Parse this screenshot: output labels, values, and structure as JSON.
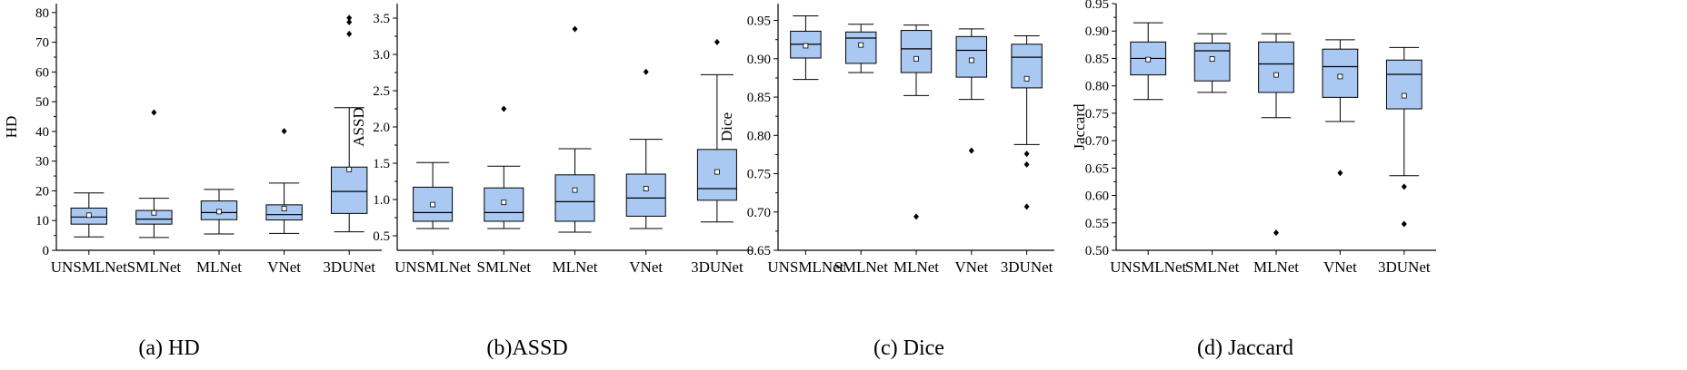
{
  "colors": {
    "box_fill": "#a9c8f2",
    "axis": "#000000",
    "mean_marker": "#ffffff"
  },
  "chart_data": [
    {
      "type": "box",
      "caption": "(a) HD",
      "ylabel": "HD",
      "xlabel": "",
      "ylim": [
        0,
        83
      ],
      "yticks": [
        0,
        10,
        20,
        30,
        40,
        50,
        60,
        70,
        80
      ],
      "tick_labels": [
        "0",
        "10",
        "20",
        "30",
        "40",
        "50",
        "60",
        "70",
        "80"
      ],
      "categories": [
        "UNSMLNet",
        "SMLNet",
        "MLNet",
        "VNet",
        "3DUNet"
      ],
      "boxes": [
        {
          "whisker_low": 4.5,
          "q1": 8.8,
          "median": 11.2,
          "q3": 14.2,
          "whisker_high": 19.3,
          "mean": 11.8,
          "outliers": []
        },
        {
          "whisker_low": 4.3,
          "q1": 8.8,
          "median": 10.5,
          "q3": 13.4,
          "whisker_high": 17.5,
          "mean": 12.6,
          "outliers": [
            46.4
          ]
        },
        {
          "whisker_low": 5.5,
          "q1": 10.3,
          "median": 12.7,
          "q3": 16.6,
          "whisker_high": 20.5,
          "mean": 13.0,
          "outliers": []
        },
        {
          "whisker_low": 5.7,
          "q1": 10.2,
          "median": 12.0,
          "q3": 15.3,
          "whisker_high": 22.6,
          "mean": 14.0,
          "outliers": [
            40.1
          ]
        },
        {
          "whisker_low": 6.2,
          "q1": 12.4,
          "median": 19.8,
          "q3": 28.0,
          "whisker_high": 48.0,
          "mean": 27.2,
          "outliers": [
            72.8,
            76.8,
            78.2
          ]
        }
      ]
    },
    {
      "type": "box",
      "caption": "(b)ASSD",
      "ylabel": "ASSD",
      "xlabel": "",
      "ylim": [
        0.3,
        3.7
      ],
      "yticks": [
        0.5,
        1.0,
        1.5,
        2.0,
        2.5,
        3.0,
        3.5
      ],
      "tick_labels": [
        "0.5",
        "1.0",
        "1.5",
        "2.0",
        "2.5",
        "3.0",
        "3.5"
      ],
      "categories": [
        "UNSMLNet",
        "SMLNet",
        "MLNet",
        "VNet",
        "3DUNet"
      ],
      "boxes": [
        {
          "whisker_low": 0.6,
          "q1": 0.7,
          "median": 0.82,
          "q3": 1.17,
          "whisker_high": 1.51,
          "mean": 0.93,
          "outliers": []
        },
        {
          "whisker_low": 0.6,
          "q1": 0.7,
          "median": 0.82,
          "q3": 1.16,
          "whisker_high": 1.46,
          "mean": 0.96,
          "outliers": [
            2.25
          ]
        },
        {
          "whisker_low": 0.55,
          "q1": 0.7,
          "median": 0.97,
          "q3": 1.34,
          "whisker_high": 1.7,
          "mean": 1.13,
          "outliers": [
            3.35
          ]
        },
        {
          "whisker_low": 0.6,
          "q1": 0.77,
          "median": 1.02,
          "q3": 1.35,
          "whisker_high": 1.83,
          "mean": 1.15,
          "outliers": [
            2.76
          ]
        },
        {
          "whisker_low": 0.69,
          "q1": 0.99,
          "median": 1.15,
          "q3": 1.69,
          "whisker_high": 2.72,
          "mean": 1.38,
          "outliers": [
            3.17
          ]
        }
      ]
    },
    {
      "type": "box",
      "caption": "(c) Dice",
      "ylabel": "Dice",
      "xlabel": "",
      "ylim": [
        0.65,
        0.972
      ],
      "yticks": [
        0.65,
        0.7,
        0.75,
        0.8,
        0.85,
        0.9,
        0.95
      ],
      "tick_labels": [
        "0.65",
        "0.70",
        "0.75",
        "0.80",
        "0.85",
        "0.90",
        "0.95"
      ],
      "categories": [
        "UNSMLNet",
        "SMLNet",
        "MLNet",
        "VNet",
        "3DUNet"
      ],
      "boxes": [
        {
          "whisker_low": 0.873,
          "q1": 0.901,
          "median": 0.919,
          "q3": 0.936,
          "whisker_high": 0.956,
          "mean": 0.917,
          "outliers": []
        },
        {
          "whisker_low": 0.882,
          "q1": 0.894,
          "median": 0.927,
          "q3": 0.935,
          "whisker_high": 0.945,
          "mean": 0.918,
          "outliers": []
        },
        {
          "whisker_low": 0.852,
          "q1": 0.882,
          "median": 0.913,
          "q3": 0.937,
          "whisker_high": 0.944,
          "mean": 0.9,
          "outliers": [
            0.694
          ]
        },
        {
          "whisker_low": 0.847,
          "q1": 0.876,
          "median": 0.911,
          "q3": 0.929,
          "whisker_high": 0.939,
          "mean": 0.898,
          "outliers": [
            0.78
          ]
        },
        {
          "whisker_low": 0.788,
          "q1": 0.862,
          "median": 0.902,
          "q3": 0.919,
          "whisker_high": 0.93,
          "mean": 0.874,
          "outliers": [
            0.776,
            0.762,
            0.707
          ]
        }
      ]
    },
    {
      "type": "box",
      "caption": "(d) Jaccard",
      "ylabel": "Jaccard",
      "xlabel": "",
      "ylim": [
        0.5,
        0.95
      ],
      "yticks": [
        0.5,
        0.55,
        0.6,
        0.65,
        0.7,
        0.75,
        0.8,
        0.85,
        0.9,
        0.95
      ],
      "tick_labels": [
        "0.50",
        "0.55",
        "0.60",
        "0.65",
        "0.70",
        "0.75",
        "0.80",
        "0.85",
        "0.90",
        "0.95"
      ],
      "categories": [
        "UNSMLNet",
        "SMLNet",
        "MLNet",
        "VNet",
        "3DUNet"
      ],
      "boxes": [
        {
          "whisker_low": 0.775,
          "q1": 0.82,
          "median": 0.85,
          "q3": 0.88,
          "whisker_high": 0.915,
          "mean": 0.848,
          "outliers": []
        },
        {
          "whisker_low": 0.788,
          "q1": 0.809,
          "median": 0.864,
          "q3": 0.878,
          "whisker_high": 0.895,
          "mean": 0.849,
          "outliers": []
        },
        {
          "whisker_low": 0.742,
          "q1": 0.788,
          "median": 0.84,
          "q3": 0.88,
          "whisker_high": 0.895,
          "mean": 0.82,
          "outliers": [
            0.532
          ]
        },
        {
          "whisker_low": 0.735,
          "q1": 0.779,
          "median": 0.835,
          "q3": 0.867,
          "whisker_high": 0.884,
          "mean": 0.817,
          "outliers": [
            0.641
          ]
        },
        {
          "whisker_low": 0.636,
          "q1": 0.758,
          "median": 0.821,
          "q3": 0.847,
          "whisker_high": 0.87,
          "mean": 0.782,
          "outliers": [
            0.616,
            0.548
          ]
        }
      ]
    }
  ]
}
